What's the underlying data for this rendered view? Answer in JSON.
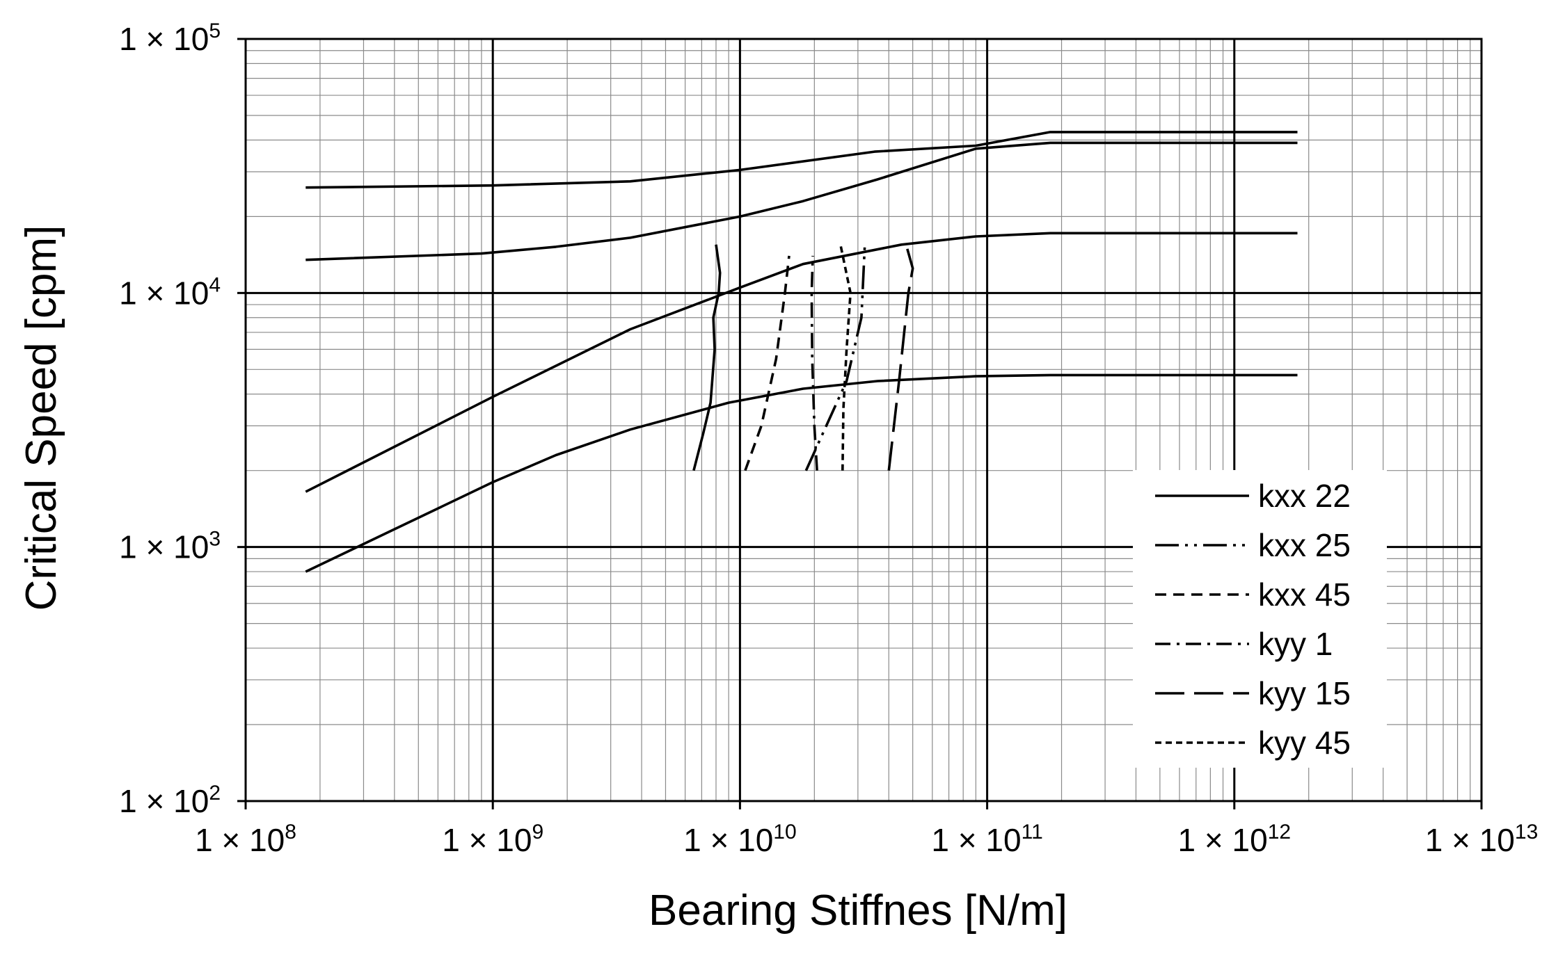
{
  "chart_data": {
    "type": "line",
    "title": "",
    "xlabel": "Bearing Stiffnes [N/m]",
    "ylabel": "Critical Speed [cpm]",
    "xscale": "log",
    "yscale": "log",
    "xlim": [
      100000000,
      10000000000000
    ],
    "ylim": [
      100,
      100000
    ],
    "grid": true,
    "legend_position": "lower-right",
    "x_ticks": [
      {
        "value": 100000000,
        "base": "1 × 10",
        "exp": "8"
      },
      {
        "value": 1000000000,
        "base": "1 × 10",
        "exp": "9"
      },
      {
        "value": 10000000000,
        "base": "1 × 10",
        "exp": "10"
      },
      {
        "value": 100000000000,
        "base": "1 × 10",
        "exp": "11"
      },
      {
        "value": 1000000000000,
        "base": "1 × 10",
        "exp": "12"
      },
      {
        "value": 10000000000000,
        "base": "1 × 10",
        "exp": "13"
      }
    ],
    "y_ticks": [
      {
        "value": 100,
        "base": "1 × 10",
        "exp": "2"
      },
      {
        "value": 1000,
        "base": "1 × 10",
        "exp": "3"
      },
      {
        "value": 10000,
        "base": "1 × 10",
        "exp": "4"
      },
      {
        "value": 100000,
        "base": "1 × 10",
        "exp": "5"
      }
    ],
    "series": [
      {
        "name": "kxx 22",
        "style": "solid",
        "kind": "mode",
        "x": [
          175000000,
          1000000000,
          3600000000,
          10000000000,
          35000000000,
          90000000000,
          180000000000,
          1800000000000
        ],
        "y": [
          26000,
          26500,
          27500,
          30500,
          36000,
          38000,
          43000,
          43000
        ]
      },
      {
        "name": "",
        "style": "solid",
        "kind": "mode",
        "x": [
          175000000,
          900000000,
          1800000000,
          3600000000,
          10000000000,
          18000000000,
          36000000000,
          90000000000,
          180000000000,
          1800000000000
        ],
        "y": [
          13500,
          14300,
          15200,
          16500,
          20000,
          23000,
          28000,
          37000,
          39000,
          39000
        ]
      },
      {
        "name": "",
        "style": "solid",
        "kind": "mode",
        "x": [
          175000000,
          1000000000,
          3600000000,
          10000000000,
          18000000000,
          45000000000,
          90000000000,
          180000000000,
          1800000000000
        ],
        "y": [
          1650,
          3900,
          7200,
          10500,
          13000,
          15500,
          16700,
          17200,
          17200
        ]
      },
      {
        "name": "",
        "style": "solid",
        "kind": "mode",
        "x": [
          175000000,
          1000000000,
          1800000000,
          3600000000,
          9000000000,
          18000000000,
          36000000000,
          90000000000,
          180000000000,
          1800000000000
        ],
        "y": [
          800,
          1800,
          2300,
          2900,
          3700,
          4200,
          4500,
          4700,
          4750,
          4750
        ]
      },
      {
        "name": "kxx 22",
        "style": "solid",
        "kind": "bearing",
        "x": [
          6500000000,
          7100000000,
          7600000000,
          7900000000,
          7800000000,
          8200000000,
          8300000000,
          8000000000
        ],
        "y": [
          2000,
          2800,
          3700,
          6000,
          8000,
          10000,
          12000,
          15500
        ]
      },
      {
        "name": "kxx 25",
        "style": "dashdotdot",
        "kind": "bearing",
        "x": [
          18500000000,
          22000000000,
          27000000000,
          31000000000,
          32000000000
        ],
        "y": [
          2000,
          2900,
          4500,
          8000,
          15500
        ]
      },
      {
        "name": "kxx 45",
        "style": "dash",
        "kind": "bearing",
        "x": [
          10500000000,
          12200000000,
          14000000000,
          15200000000,
          15800000000
        ],
        "y": [
          2000,
          3000,
          5500,
          10000,
          14000
        ]
      },
      {
        "name": "kyy 1",
        "style": "dashdot",
        "kind": "bearing",
        "x": [
          20500000000,
          20000000000,
          19600000000,
          19500000000,
          19700000000
        ],
        "y": [
          2000,
          3000,
          5500,
          10000,
          14000
        ]
      },
      {
        "name": "kyy 15",
        "style": "longdash",
        "kind": "bearing",
        "x": [
          40000000000,
          44000000000,
          48000000000,
          50000000000,
          47000000000
        ],
        "y": [
          2000,
          4500,
          10000,
          12500,
          15500
        ]
      },
      {
        "name": "kyy 45",
        "style": "shortdash",
        "kind": "bearing",
        "x": [
          26000000000,
          26200000000,
          27000000000,
          28000000000,
          25500000000
        ],
        "y": [
          2000,
          3500,
          6000,
          10000,
          15500
        ]
      }
    ],
    "legend": [
      {
        "label": "kxx 22",
        "style": "solid"
      },
      {
        "label": "kxx 25",
        "style": "dashdotdot"
      },
      {
        "label": "kxx 45",
        "style": "dash"
      },
      {
        "label": "kyy 1",
        "style": "dashdot"
      },
      {
        "label": "kyy 15",
        "style": "longdash"
      },
      {
        "label": "kyy 45",
        "style": "shortdash"
      }
    ]
  }
}
